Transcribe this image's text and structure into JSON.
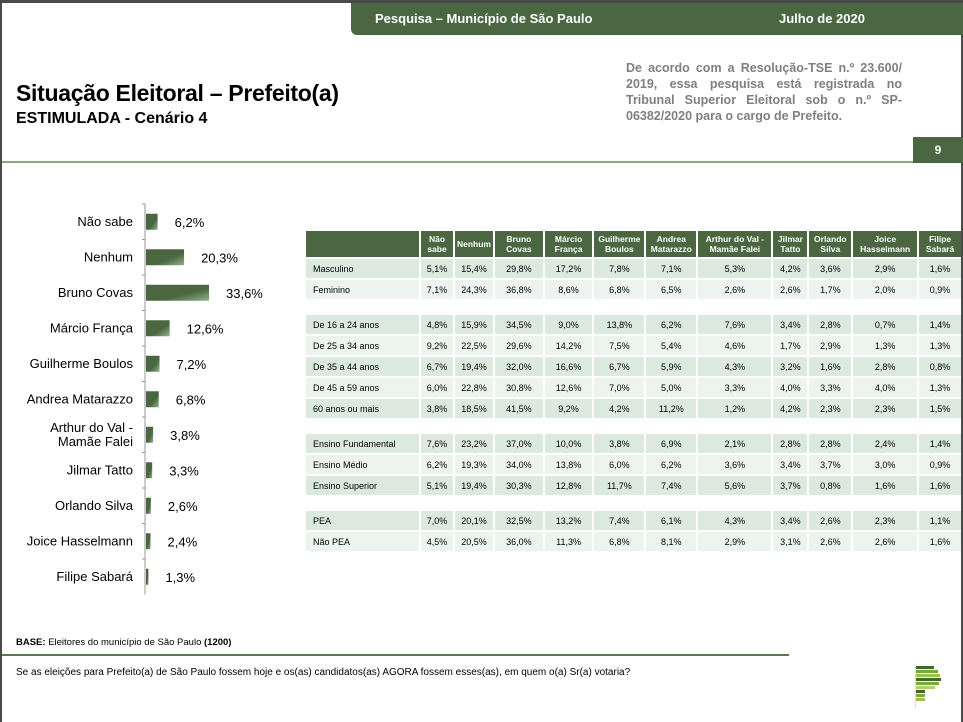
{
  "header": {
    "survey_label": "Pesquisa – Município de São Paulo",
    "date_label": "Julho de 2020",
    "title": "Situação Eleitoral – Prefeito(a)",
    "subtitle_bold": "ESTIMULADA",
    "subtitle_rest": " - Cenário 4",
    "legal_text": "De acordo com a Resolução-TSE n.º 23.600/ 2019, essa pesquisa está registrada no Tribunal Superior Eleitoral sob o n.º SP-06382/2020 para o cargo de Prefeito.",
    "page_number": "9"
  },
  "chart_data": {
    "type": "bar",
    "orientation": "horizontal",
    "title": "",
    "xlabel": "",
    "ylabel": "",
    "categories": [
      "Não sabe",
      "Nenhum",
      "Bruno Covas",
      "Márcio França",
      "Guilherme Boulos",
      "Andrea Matarazzo",
      "Arthur do Val - Mamãe Falei",
      "Jilmar Tatto",
      "Orlando Silva",
      "Joice Hasselmann",
      "Filipe Sabará"
    ],
    "values": [
      6.2,
      20.3,
      33.6,
      12.6,
      7.2,
      6.8,
      3.8,
      3.3,
      2.6,
      2.4,
      1.3
    ],
    "value_labels": [
      "6,2%",
      "20,3%",
      "33,6%",
      "12,6%",
      "7,2%",
      "6,8%",
      "3,8%",
      "3,3%",
      "2,6%",
      "2,4%",
      "1,3%"
    ],
    "unit": "%",
    "xlim": [
      0,
      35
    ],
    "grid": false,
    "legend": "none",
    "bar_color": "#4a6741"
  },
  "table": {
    "corner": "",
    "columns": [
      "Não sabe",
      "Nenhum",
      "Bruno Covas",
      "Márcio França",
      "Guilherme Boulos",
      "Andrea Matarazzo",
      "Arthur do Val - Mamãe Falei",
      "Jilmar Tatto",
      "Orlando Silva",
      "Joice Hasselmann",
      "Filipe Sabará"
    ],
    "groups": [
      {
        "rows": [
          {
            "label": "Masculino",
            "values": [
              "5,1%",
              "15,4%",
              "29,8%",
              "17,2%",
              "7,8%",
              "7,1%",
              "5,3%",
              "4,2%",
              "3,6%",
              "2,9%",
              "1,6%"
            ]
          },
          {
            "label": "Feminino",
            "values": [
              "7,1%",
              "24,3%",
              "36,8%",
              "8,6%",
              "6,8%",
              "6,5%",
              "2,6%",
              "2,6%",
              "1,7%",
              "2,0%",
              "0,9%"
            ]
          }
        ]
      },
      {
        "rows": [
          {
            "label": "De 16 a 24 anos",
            "values": [
              "4,8%",
              "15,9%",
              "34,5%",
              "9,0%",
              "13,8%",
              "6,2%",
              "7,6%",
              "3,4%",
              "2,8%",
              "0,7%",
              "1,4%"
            ]
          },
          {
            "label": "De 25 a 34 anos",
            "values": [
              "9,2%",
              "22,5%",
              "29,6%",
              "14,2%",
              "7,5%",
              "5,4%",
              "4,6%",
              "1,7%",
              "2,9%",
              "1,3%",
              "1,3%"
            ]
          },
          {
            "label": "De 35 a 44 anos",
            "values": [
              "6,7%",
              "19,4%",
              "32,0%",
              "16,6%",
              "6,7%",
              "5,9%",
              "4,3%",
              "3,2%",
              "1,6%",
              "2,8%",
              "0,8%"
            ]
          },
          {
            "label": "De 45 a 59 anos",
            "values": [
              "6,0%",
              "22,8%",
              "30,8%",
              "12,6%",
              "7,0%",
              "5,0%",
              "3,3%",
              "4,0%",
              "3,3%",
              "4,0%",
              "1,3%"
            ]
          },
          {
            "label": "60 anos ou mais",
            "values": [
              "3,8%",
              "18,5%",
              "41,5%",
              "9,2%",
              "4,2%",
              "11,2%",
              "1,2%",
              "4,2%",
              "2,3%",
              "2,3%",
              "1,5%"
            ]
          }
        ]
      },
      {
        "rows": [
          {
            "label": "Ensino Fundamental",
            "values": [
              "7,6%",
              "23,2%",
              "37,0%",
              "10,0%",
              "3,8%",
              "6,9%",
              "2,1%",
              "2,8%",
              "2,8%",
              "2,4%",
              "1,4%"
            ]
          },
          {
            "label": "Ensino Médio",
            "values": [
              "6,2%",
              "19,3%",
              "34,0%",
              "13,8%",
              "6,0%",
              "6,2%",
              "3,6%",
              "3,4%",
              "3,7%",
              "3,0%",
              "0,9%"
            ]
          },
          {
            "label": "Ensino Superior",
            "values": [
              "5,1%",
              "19,4%",
              "30,3%",
              "12,8%",
              "11,7%",
              "7,4%",
              "5,6%",
              "3,7%",
              "0,8%",
              "1,6%",
              "1,6%"
            ]
          }
        ]
      },
      {
        "rows": [
          {
            "label": "PEA",
            "values": [
              "7,0%",
              "20,1%",
              "32,5%",
              "13,2%",
              "7,4%",
              "6,1%",
              "4,3%",
              "3,4%",
              "2,6%",
              "2,3%",
              "1,1%"
            ]
          },
          {
            "label": "Não PEA",
            "values": [
              "4,5%",
              "20,5%",
              "36,0%",
              "11,3%",
              "6,8%",
              "8,1%",
              "2,9%",
              "3,1%",
              "2,6%",
              "2,6%",
              "1,6%"
            ]
          }
        ]
      }
    ]
  },
  "footer": {
    "base_label": "BASE:",
    "base_text": " Eleitores do município de São Paulo ",
    "base_count": "(1200)",
    "question": "Se as eleições para Prefeito(a) de São Paulo fossem hoje e os(as) candidatos(as) AGORA fossem esses(as), em quem o(a) Sr(a) votaria?",
    "logo_icon": "institute-logo-icon"
  },
  "colors": {
    "brand_green": "#4a6741",
    "row_odd": "#dbe9df",
    "row_even": "#edf4ef",
    "legal_gray": "#7f7f7f"
  }
}
